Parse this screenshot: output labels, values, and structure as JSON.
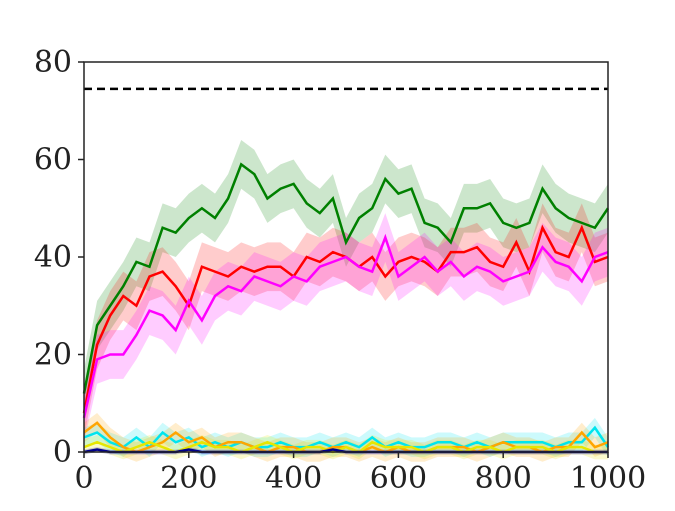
{
  "chart_data": {
    "type": "line",
    "x": [
      0,
      25,
      50,
      75,
      100,
      125,
      150,
      175,
      200,
      225,
      250,
      275,
      300,
      325,
      350,
      375,
      400,
      425,
      450,
      475,
      500,
      525,
      550,
      575,
      600,
      625,
      650,
      675,
      700,
      725,
      750,
      775,
      800,
      825,
      850,
      875,
      900,
      925,
      950,
      975,
      1000
    ],
    "series": [
      {
        "color": "#008000",
        "spread": 5,
        "values": [
          12,
          26,
          30,
          34,
          39,
          38,
          46,
          45,
          48,
          50,
          48,
          52,
          59,
          57,
          52,
          54,
          55,
          51,
          49,
          52,
          43,
          48,
          50,
          56,
          53,
          54,
          47,
          46,
          43,
          50,
          50,
          51,
          47,
          46,
          47,
          54,
          50,
          48,
          47,
          46,
          50
        ]
      },
      {
        "color": "#ff0000",
        "spread": 5,
        "values": [
          8,
          22,
          28,
          32,
          30,
          36,
          37,
          34,
          30,
          38,
          37,
          36,
          38,
          37,
          38,
          38,
          36,
          40,
          39,
          41,
          40,
          38,
          40,
          36,
          39,
          40,
          39,
          37,
          41,
          41,
          42,
          39,
          38,
          43,
          37,
          46,
          41,
          40,
          46,
          39,
          40
        ]
      },
      {
        "color": "#ff00ff",
        "spread": 5,
        "values": [
          7,
          19,
          20,
          20,
          24,
          29,
          28,
          25,
          31,
          27,
          32,
          34,
          33,
          36,
          35,
          34,
          36,
          35,
          38,
          39,
          40,
          38,
          37,
          44,
          36,
          38,
          40,
          37,
          39,
          36,
          38,
          37,
          35,
          36,
          37,
          42,
          39,
          38,
          35,
          40,
          41
        ]
      },
      {
        "color": "#00e5ee",
        "spread": 2,
        "values": [
          3,
          4,
          2,
          1,
          3,
          1,
          4,
          2,
          3,
          1,
          2,
          1,
          2,
          1,
          1,
          2,
          1,
          1,
          2,
          1,
          2,
          1,
          3,
          1,
          2,
          1,
          1,
          2,
          2,
          1,
          2,
          1,
          2,
          2,
          2,
          2,
          1,
          2,
          2,
          5,
          1
        ]
      },
      {
        "color": "#ffa500",
        "spread": 2,
        "values": [
          4,
          6,
          3,
          1,
          0,
          1,
          2,
          4,
          2,
          3,
          1,
          2,
          2,
          1,
          0,
          1,
          1,
          0,
          0,
          1,
          1,
          0,
          1,
          0,
          1,
          0,
          0,
          1,
          1,
          1,
          0,
          1,
          2,
          1,
          1,
          0,
          1,
          1,
          4,
          1,
          2
        ]
      },
      {
        "color": "#e6e600",
        "spread": 1.5,
        "values": [
          1,
          2,
          1,
          0,
          1,
          2,
          1,
          0,
          1,
          2,
          1,
          1,
          0,
          1,
          2,
          1,
          0,
          1,
          1,
          0,
          1,
          0,
          2,
          1,
          1,
          1,
          0,
          1,
          1,
          0,
          1,
          1,
          0,
          1,
          1,
          1,
          0,
          1,
          1,
          0,
          0
        ]
      },
      {
        "color": "#00008b",
        "spread": 0.5,
        "values": [
          0,
          0.5,
          0,
          0,
          0,
          0,
          0,
          0,
          0.5,
          0,
          0,
          0,
          0,
          0,
          0,
          0,
          0,
          0,
          0,
          0.5,
          0,
          0,
          0,
          0,
          0,
          0,
          0,
          0,
          0,
          0,
          0,
          0,
          0,
          0,
          0,
          0,
          0,
          0,
          0,
          0,
          0
        ]
      }
    ],
    "reference_line": {
      "value": 74.5,
      "color": "#000000"
    },
    "xlim": [
      0,
      1000
    ],
    "xticks": [
      0,
      200,
      400,
      600,
      800,
      1000
    ],
    "ylim": [
      0,
      80
    ],
    "yticks": [
      0,
      20,
      40,
      60,
      80
    ]
  }
}
